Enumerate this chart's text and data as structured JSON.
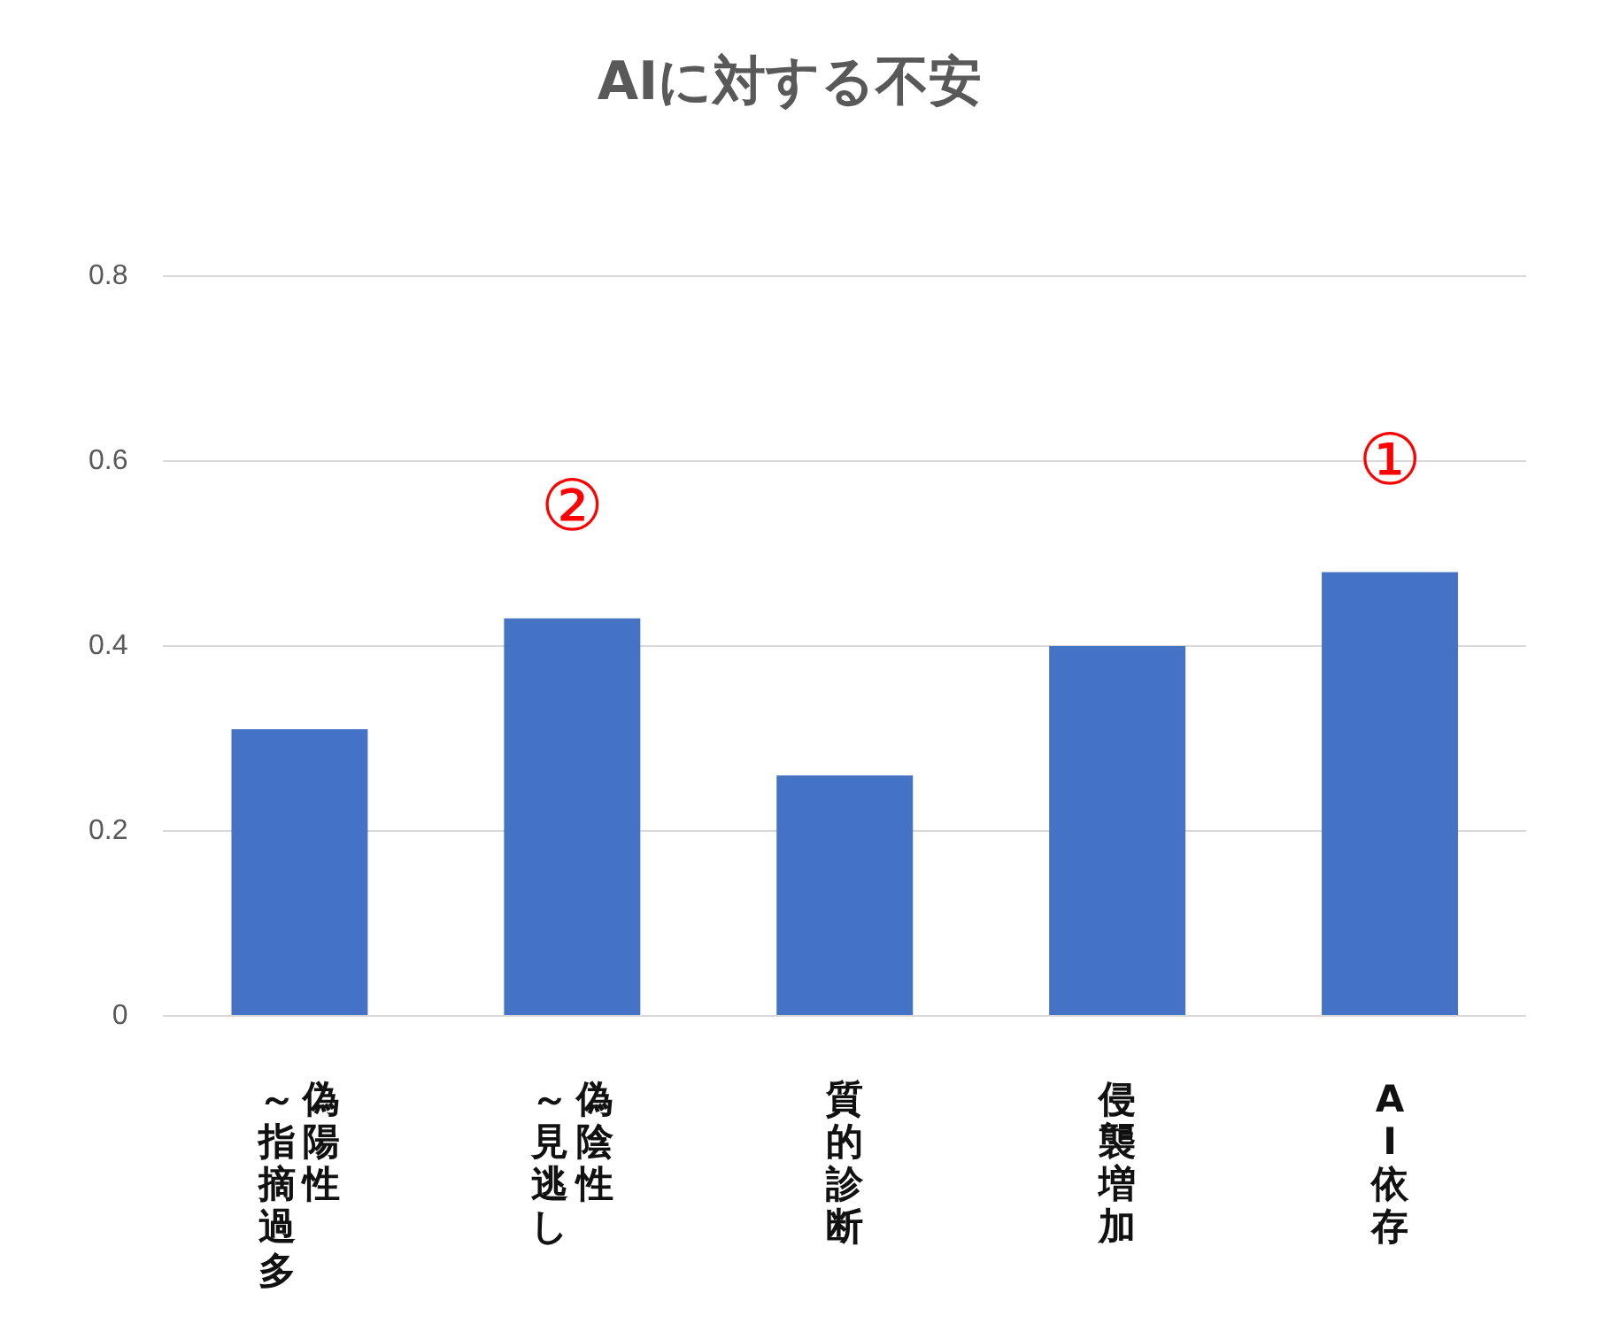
{
  "chart_data": {
    "type": "bar",
    "title": "AIに対する不安",
    "categories": [
      "偽陽性～指摘過多",
      "偽陰性～見逃し",
      "質的診断",
      "侵襲増加",
      "AI依存"
    ],
    "values": [
      0.31,
      0.43,
      0.26,
      0.4,
      0.48
    ],
    "color": "#4472c4",
    "ylim": [
      0,
      0.8
    ],
    "yticks": [
      0,
      0.2,
      0.4,
      0.6,
      0.8
    ],
    "grid": "y",
    "annotations": [
      {
        "text": "②",
        "x": "偽陰性～見逃し",
        "y": 0.43
      },
      {
        "text": "①",
        "x": "AI依存",
        "y": 0.48
      }
    ]
  }
}
